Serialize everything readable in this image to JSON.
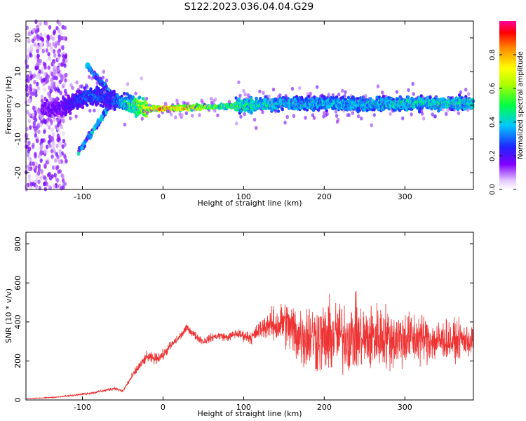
{
  "title": "S122.2023.036.04.04.G29",
  "chart_data": [
    {
      "type": "heatmap",
      "xlabel": "Height of straight line (km)",
      "ylabel": "Frequency (Hz)",
      "xlim": [
        -170,
        385
      ],
      "ylim": [
        -25,
        25
      ],
      "xticks": [
        -100,
        0,
        100,
        200,
        300
      ],
      "yticks": [
        -20,
        -10,
        0,
        10,
        20
      ],
      "colorbar": {
        "label": "Normalized spectral amplitude",
        "range": [
          0,
          1
        ],
        "ticks": [
          "0.0",
          "0.2",
          "0.4",
          "0.6",
          "0.8"
        ],
        "tick_values": [
          0.0,
          0.2,
          0.4,
          0.6,
          0.8
        ]
      },
      "ridge": {
        "description_points": [
          {
            "x": -130,
            "y": -1.0,
            "amp": 0.2
          },
          {
            "x": -115,
            "y": 0.5,
            "amp": 0.25
          },
          {
            "x": -90,
            "y": 3.0,
            "amp": 0.35
          },
          {
            "x": -65,
            "y": 2.0,
            "amp": 0.3
          },
          {
            "x": -50,
            "y": 0.5,
            "amp": 0.45
          },
          {
            "x": -20,
            "y": -1.0,
            "amp": 0.8
          },
          {
            "x": 0,
            "y": -1.0,
            "amp": 0.97
          },
          {
            "x": 30,
            "y": -0.8,
            "amp": 0.85
          },
          {
            "x": 60,
            "y": -0.5,
            "amp": 0.7
          },
          {
            "x": 100,
            "y": 0.0,
            "amp": 0.55
          },
          {
            "x": 150,
            "y": 0.5,
            "amp": 0.45
          },
          {
            "x": 200,
            "y": 0.5,
            "amp": 0.45
          },
          {
            "x": 250,
            "y": 0.3,
            "amp": 0.45
          },
          {
            "x": 300,
            "y": 0.5,
            "amp": 0.5
          },
          {
            "x": 350,
            "y": 0.5,
            "amp": 0.5
          },
          {
            "x": 385,
            "y": 0.5,
            "amp": 0.5
          }
        ]
      }
    },
    {
      "type": "line",
      "xlabel": "Height of straight line (km)",
      "ylabel": "SNR (10 * v/v)",
      "xlim": [
        -170,
        385
      ],
      "ylim": [
        0,
        860
      ],
      "xticks": [
        -100,
        0,
        100,
        200,
        300
      ],
      "yticks": [
        0,
        200,
        400,
        600,
        800
      ],
      "grid": false,
      "series": [
        {
          "color": "#ee3333",
          "x": [
            -170,
            -150,
            -130,
            -110,
            -90,
            -70,
            -60,
            -50,
            -40,
            -30,
            -20,
            -10,
            0,
            10,
            20,
            30,
            40,
            50,
            60,
            70,
            80,
            90,
            100,
            110,
            120,
            130,
            140,
            150,
            160,
            170,
            180,
            190,
            200,
            210,
            220,
            230,
            240,
            250,
            260,
            270,
            280,
            290,
            300,
            310,
            320,
            330,
            340,
            350,
            360,
            370,
            385
          ],
          "y": [
            8,
            10,
            15,
            25,
            35,
            50,
            60,
            45,
            110,
            170,
            220,
            210,
            230,
            280,
            320,
            370,
            330,
            300,
            320,
            330,
            320,
            340,
            330,
            320,
            360,
            390,
            380,
            400,
            360,
            330,
            330,
            320,
            310,
            320,
            330,
            320,
            330,
            310,
            320,
            330,
            320,
            310,
            320,
            310,
            320,
            310,
            300,
            310,
            300,
            310,
            300
          ],
          "noise": [
            2,
            3,
            4,
            6,
            8,
            10,
            12,
            10,
            25,
            35,
            40,
            40,
            40,
            35,
            30,
            30,
            30,
            30,
            30,
            30,
            30,
            35,
            40,
            50,
            70,
            100,
            140,
            170,
            210,
            240,
            250,
            260,
            270,
            270,
            260,
            260,
            260,
            250,
            250,
            240,
            230,
            220,
            210,
            200,
            190,
            170,
            160,
            150,
            140,
            130,
            120
          ]
        }
      ]
    }
  ]
}
